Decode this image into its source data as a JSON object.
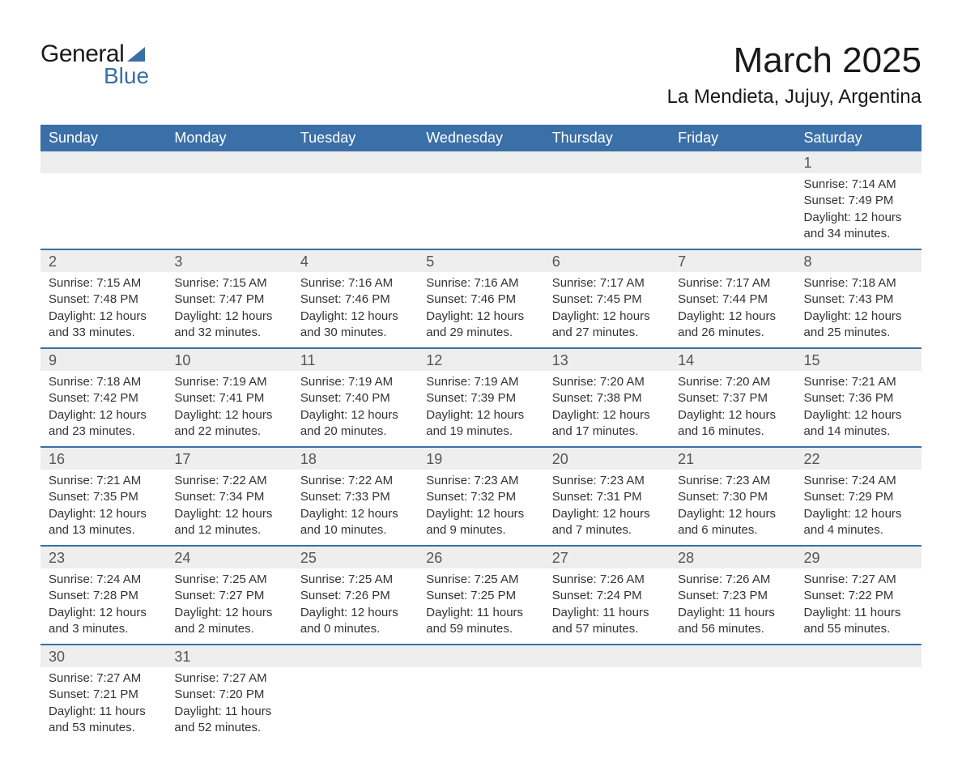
{
  "logo": {
    "text_general": "General",
    "text_blue": "Blue",
    "triangle_color": "#3b6fa8"
  },
  "header": {
    "month_year": "March 2025",
    "location": "La Mendieta, Jujuy, Argentina"
  },
  "colors": {
    "header_bg": "#3b6fa8",
    "header_text": "#ffffff",
    "daynum_bg": "#eeeeee",
    "daynum_text": "#555555",
    "body_text": "#333333",
    "border": "#3b6fa8"
  },
  "weekdays": [
    "Sunday",
    "Monday",
    "Tuesday",
    "Wednesday",
    "Thursday",
    "Friday",
    "Saturday"
  ],
  "weeks": [
    [
      null,
      null,
      null,
      null,
      null,
      null,
      {
        "day": "1",
        "sunrise": "Sunrise: 7:14 AM",
        "sunset": "Sunset: 7:49 PM",
        "daylight1": "Daylight: 12 hours",
        "daylight2": "and 34 minutes."
      }
    ],
    [
      {
        "day": "2",
        "sunrise": "Sunrise: 7:15 AM",
        "sunset": "Sunset: 7:48 PM",
        "daylight1": "Daylight: 12 hours",
        "daylight2": "and 33 minutes."
      },
      {
        "day": "3",
        "sunrise": "Sunrise: 7:15 AM",
        "sunset": "Sunset: 7:47 PM",
        "daylight1": "Daylight: 12 hours",
        "daylight2": "and 32 minutes."
      },
      {
        "day": "4",
        "sunrise": "Sunrise: 7:16 AM",
        "sunset": "Sunset: 7:46 PM",
        "daylight1": "Daylight: 12 hours",
        "daylight2": "and 30 minutes."
      },
      {
        "day": "5",
        "sunrise": "Sunrise: 7:16 AM",
        "sunset": "Sunset: 7:46 PM",
        "daylight1": "Daylight: 12 hours",
        "daylight2": "and 29 minutes."
      },
      {
        "day": "6",
        "sunrise": "Sunrise: 7:17 AM",
        "sunset": "Sunset: 7:45 PM",
        "daylight1": "Daylight: 12 hours",
        "daylight2": "and 27 minutes."
      },
      {
        "day": "7",
        "sunrise": "Sunrise: 7:17 AM",
        "sunset": "Sunset: 7:44 PM",
        "daylight1": "Daylight: 12 hours",
        "daylight2": "and 26 minutes."
      },
      {
        "day": "8",
        "sunrise": "Sunrise: 7:18 AM",
        "sunset": "Sunset: 7:43 PM",
        "daylight1": "Daylight: 12 hours",
        "daylight2": "and 25 minutes."
      }
    ],
    [
      {
        "day": "9",
        "sunrise": "Sunrise: 7:18 AM",
        "sunset": "Sunset: 7:42 PM",
        "daylight1": "Daylight: 12 hours",
        "daylight2": "and 23 minutes."
      },
      {
        "day": "10",
        "sunrise": "Sunrise: 7:19 AM",
        "sunset": "Sunset: 7:41 PM",
        "daylight1": "Daylight: 12 hours",
        "daylight2": "and 22 minutes."
      },
      {
        "day": "11",
        "sunrise": "Sunrise: 7:19 AM",
        "sunset": "Sunset: 7:40 PM",
        "daylight1": "Daylight: 12 hours",
        "daylight2": "and 20 minutes."
      },
      {
        "day": "12",
        "sunrise": "Sunrise: 7:19 AM",
        "sunset": "Sunset: 7:39 PM",
        "daylight1": "Daylight: 12 hours",
        "daylight2": "and 19 minutes."
      },
      {
        "day": "13",
        "sunrise": "Sunrise: 7:20 AM",
        "sunset": "Sunset: 7:38 PM",
        "daylight1": "Daylight: 12 hours",
        "daylight2": "and 17 minutes."
      },
      {
        "day": "14",
        "sunrise": "Sunrise: 7:20 AM",
        "sunset": "Sunset: 7:37 PM",
        "daylight1": "Daylight: 12 hours",
        "daylight2": "and 16 minutes."
      },
      {
        "day": "15",
        "sunrise": "Sunrise: 7:21 AM",
        "sunset": "Sunset: 7:36 PM",
        "daylight1": "Daylight: 12 hours",
        "daylight2": "and 14 minutes."
      }
    ],
    [
      {
        "day": "16",
        "sunrise": "Sunrise: 7:21 AM",
        "sunset": "Sunset: 7:35 PM",
        "daylight1": "Daylight: 12 hours",
        "daylight2": "and 13 minutes."
      },
      {
        "day": "17",
        "sunrise": "Sunrise: 7:22 AM",
        "sunset": "Sunset: 7:34 PM",
        "daylight1": "Daylight: 12 hours",
        "daylight2": "and 12 minutes."
      },
      {
        "day": "18",
        "sunrise": "Sunrise: 7:22 AM",
        "sunset": "Sunset: 7:33 PM",
        "daylight1": "Daylight: 12 hours",
        "daylight2": "and 10 minutes."
      },
      {
        "day": "19",
        "sunrise": "Sunrise: 7:23 AM",
        "sunset": "Sunset: 7:32 PM",
        "daylight1": "Daylight: 12 hours",
        "daylight2": "and 9 minutes."
      },
      {
        "day": "20",
        "sunrise": "Sunrise: 7:23 AM",
        "sunset": "Sunset: 7:31 PM",
        "daylight1": "Daylight: 12 hours",
        "daylight2": "and 7 minutes."
      },
      {
        "day": "21",
        "sunrise": "Sunrise: 7:23 AM",
        "sunset": "Sunset: 7:30 PM",
        "daylight1": "Daylight: 12 hours",
        "daylight2": "and 6 minutes."
      },
      {
        "day": "22",
        "sunrise": "Sunrise: 7:24 AM",
        "sunset": "Sunset: 7:29 PM",
        "daylight1": "Daylight: 12 hours",
        "daylight2": "and 4 minutes."
      }
    ],
    [
      {
        "day": "23",
        "sunrise": "Sunrise: 7:24 AM",
        "sunset": "Sunset: 7:28 PM",
        "daylight1": "Daylight: 12 hours",
        "daylight2": "and 3 minutes."
      },
      {
        "day": "24",
        "sunrise": "Sunrise: 7:25 AM",
        "sunset": "Sunset: 7:27 PM",
        "daylight1": "Daylight: 12 hours",
        "daylight2": "and 2 minutes."
      },
      {
        "day": "25",
        "sunrise": "Sunrise: 7:25 AM",
        "sunset": "Sunset: 7:26 PM",
        "daylight1": "Daylight: 12 hours",
        "daylight2": "and 0 minutes."
      },
      {
        "day": "26",
        "sunrise": "Sunrise: 7:25 AM",
        "sunset": "Sunset: 7:25 PM",
        "daylight1": "Daylight: 11 hours",
        "daylight2": "and 59 minutes."
      },
      {
        "day": "27",
        "sunrise": "Sunrise: 7:26 AM",
        "sunset": "Sunset: 7:24 PM",
        "daylight1": "Daylight: 11 hours",
        "daylight2": "and 57 minutes."
      },
      {
        "day": "28",
        "sunrise": "Sunrise: 7:26 AM",
        "sunset": "Sunset: 7:23 PM",
        "daylight1": "Daylight: 11 hours",
        "daylight2": "and 56 minutes."
      },
      {
        "day": "29",
        "sunrise": "Sunrise: 7:27 AM",
        "sunset": "Sunset: 7:22 PM",
        "daylight1": "Daylight: 11 hours",
        "daylight2": "and 55 minutes."
      }
    ],
    [
      {
        "day": "30",
        "sunrise": "Sunrise: 7:27 AM",
        "sunset": "Sunset: 7:21 PM",
        "daylight1": "Daylight: 11 hours",
        "daylight2": "and 53 minutes."
      },
      {
        "day": "31",
        "sunrise": "Sunrise: 7:27 AM",
        "sunset": "Sunset: 7:20 PM",
        "daylight1": "Daylight: 11 hours",
        "daylight2": "and 52 minutes."
      },
      null,
      null,
      null,
      null,
      null
    ]
  ]
}
